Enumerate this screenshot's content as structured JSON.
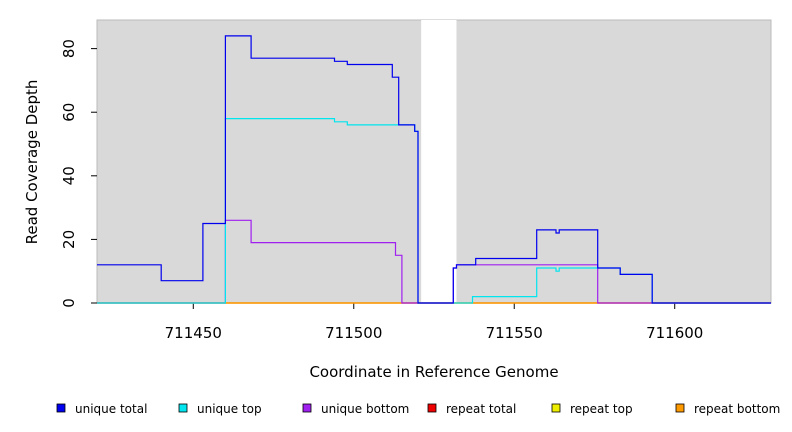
{
  "chart_data": {
    "type": "line",
    "title": "",
    "xlabel": "Coordinate in Reference Genome",
    "ylabel": "Read Coverage Depth",
    "xlim": [
      711420,
      711630
    ],
    "ylim": [
      0,
      89
    ],
    "x_ticks": [
      711450,
      711500,
      711550,
      711600
    ],
    "x_tick_labels": [
      "711450",
      "711500",
      "711550",
      "711600"
    ],
    "y_ticks": [
      0,
      20,
      40,
      60,
      80
    ],
    "y_tick_labels": [
      "0",
      "20",
      "40",
      "60",
      "80"
    ],
    "grid": false,
    "background": "#d9d9d9",
    "gap_region": [
      711521,
      711532
    ],
    "legend": {
      "placement": "bottom"
    },
    "series": [
      {
        "name": "unique total",
        "color": "#0000ee",
        "x": [
          711420,
          711440,
          711440,
          711453,
          711453,
          711460,
          711460,
          711468,
          711468,
          711494,
          711494,
          711498,
          711498,
          711512,
          711512,
          711514,
          711514,
          711519,
          711519,
          711520,
          711520,
          711531,
          711531,
          711532,
          711532,
          711538,
          711538,
          711557,
          711557,
          711563,
          711563,
          711564,
          711564,
          711576,
          711576,
          711583,
          711583,
          711593,
          711593,
          711630
        ],
        "y": [
          12,
          12,
          7,
          7,
          25,
          25,
          84,
          84,
          77,
          77,
          76,
          76,
          75,
          75,
          71,
          71,
          56,
          56,
          54,
          54,
          0,
          0,
          11,
          11,
          12,
          12,
          14,
          14,
          23,
          23,
          22,
          22,
          23,
          23,
          11,
          11,
          9,
          9,
          0,
          0
        ]
      },
      {
        "name": "unique top",
        "color": "#00e5ee",
        "x": [
          711420,
          711460,
          711460,
          711494,
          711494,
          711498,
          711498,
          711514,
          711514,
          711519,
          711519,
          711520,
          711520,
          711537,
          711537,
          711557,
          711557,
          711563,
          711563,
          711564,
          711564,
          711576,
          711576,
          711583,
          711583,
          711593,
          711593,
          711630
        ],
        "y": [
          0,
          0,
          58,
          58,
          57,
          57,
          56,
          56,
          56,
          56,
          54,
          54,
          0,
          0,
          2,
          2,
          11,
          11,
          10,
          10,
          11,
          11,
          11,
          11,
          9,
          9,
          0,
          0
        ]
      },
      {
        "name": "unique bottom",
        "color": "#a020f0",
        "x": [
          711420,
          711460,
          711460,
          711468,
          711468,
          711513,
          711513,
          711515,
          711515,
          711531,
          711531,
          711532,
          711532,
          711576,
          711576,
          711630
        ],
        "y": [
          0,
          0,
          26,
          26,
          19,
          19,
          15,
          15,
          0,
          0,
          11,
          11,
          12,
          12,
          0,
          0
        ]
      },
      {
        "name": "repeat total",
        "color": "#ee0000",
        "x": [
          711420,
          711630
        ],
        "y": [
          0,
          0
        ]
      },
      {
        "name": "repeat top",
        "color": "#eeee00",
        "x": [
          711420,
          711630
        ],
        "y": [
          0,
          0
        ]
      },
      {
        "name": "repeat bottom",
        "color": "#ff9900",
        "x": [
          711420,
          711630
        ],
        "y": [
          0,
          0
        ]
      }
    ]
  }
}
